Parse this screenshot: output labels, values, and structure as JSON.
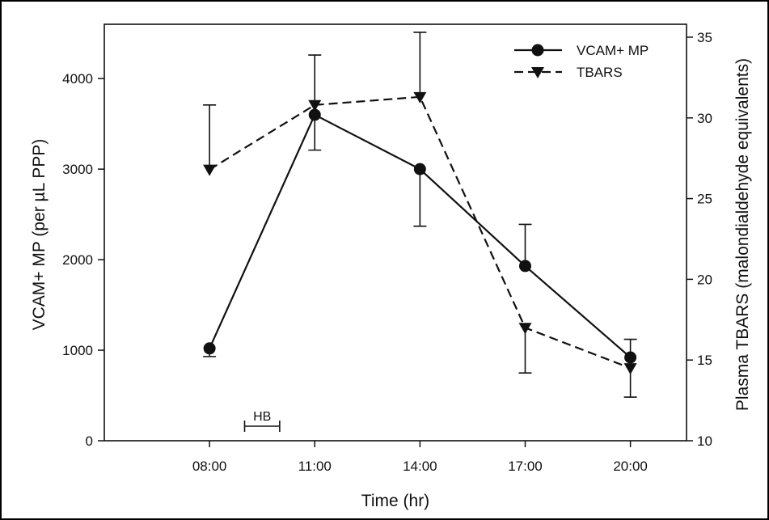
{
  "chart_data": {
    "type": "line",
    "title": "",
    "xlabel": "Time (hr)",
    "ylabel_left": "VCAM+ MP (per µL PPP)",
    "ylabel_right": "Plasma TBARS (malondialdehyde equivalents)",
    "categories": [
      "08:00",
      "11:00",
      "14:00",
      "17:00",
      "20:00"
    ],
    "x": [
      8,
      11,
      14,
      17,
      20
    ],
    "xlim": [
      5.0,
      21.6
    ],
    "ylim_left": [
      0,
      4600
    ],
    "ylim_right": [
      10,
      35.8
    ],
    "yticks_left": [
      "0",
      "1000",
      "2000",
      "3000",
      "4000"
    ],
    "yticks_right": [
      "10",
      "15",
      "20",
      "25",
      "30",
      "35"
    ],
    "grid": false,
    "legend_position": "top-right",
    "annotation": {
      "label": "HB",
      "x_start": 9.0,
      "x_end": 10.0
    },
    "series": [
      {
        "name": "VCAM+ MP",
        "axis": "left",
        "line_style": "solid",
        "marker": "circle",
        "values": [
          1020,
          3600,
          3000,
          1930,
          920
        ],
        "error_low": [
          930,
          3210,
          2370,
          null,
          null
        ],
        "error_high": [
          null,
          4260,
          null,
          2390,
          1120
        ]
      },
      {
        "name": "TBARS",
        "axis": "right",
        "line_style": "dashed",
        "marker": "triangle-down",
        "values": [
          26.8,
          30.8,
          31.3,
          17.0,
          14.5
        ],
        "error_low": [
          null,
          null,
          null,
          14.2,
          12.7
        ],
        "error_high": [
          30.8,
          null,
          35.3,
          null,
          null
        ]
      }
    ]
  }
}
